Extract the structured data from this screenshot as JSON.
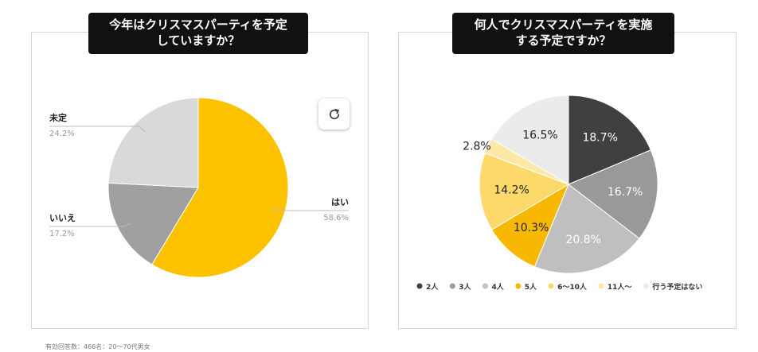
{
  "left": {
    "title_line1": "今年はクリスマスパーティを予定",
    "title_line2": "していますか？",
    "refresh_icon": "refresh-icon"
  },
  "right": {
    "title_line1": "何人でクリスマスパーティを実施",
    "title_line2": "する予定ですか？"
  },
  "footnote": "有効回答数：466名：20〜70代男女",
  "chart_data": [
    {
      "type": "pie",
      "title": "今年はクリスマスパーティを予定していますか？",
      "slices": [
        {
          "label": "はい",
          "value": 58.6,
          "value_label": "58.6%",
          "color": "#FCC200"
        },
        {
          "label": "いいえ",
          "value": 17.2,
          "value_label": "17.2%",
          "color": "#A0A0A0"
        },
        {
          "label": "未定",
          "value": 24.2,
          "value_label": "24.2%",
          "color": "#D9D9D9"
        }
      ]
    },
    {
      "type": "pie",
      "title": "何人でクリスマスパーティを実施する予定ですか？",
      "slices": [
        {
          "label": "2人",
          "value": 18.7,
          "value_label": "18.7%",
          "color": "#404040"
        },
        {
          "label": "3人",
          "value": 16.7,
          "value_label": "16.7%",
          "color": "#999999"
        },
        {
          "label": "4人",
          "value": 20.8,
          "value_label": "20.8%",
          "color": "#BFBFBF"
        },
        {
          "label": "5人",
          "value": 10.3,
          "value_label": "10.3%",
          "color": "#F8B800"
        },
        {
          "label": "6〜10人",
          "value": 14.2,
          "value_label": "14.2%",
          "color": "#FCD96A"
        },
        {
          "label": "11人〜",
          "value": 2.8,
          "value_label": "2.8%",
          "color": "#FCE9A8"
        },
        {
          "label": "行う予定はない",
          "value": 16.5,
          "value_label": "16.5%",
          "color": "#EBEBEB"
        }
      ],
      "legend": "bottom"
    }
  ]
}
